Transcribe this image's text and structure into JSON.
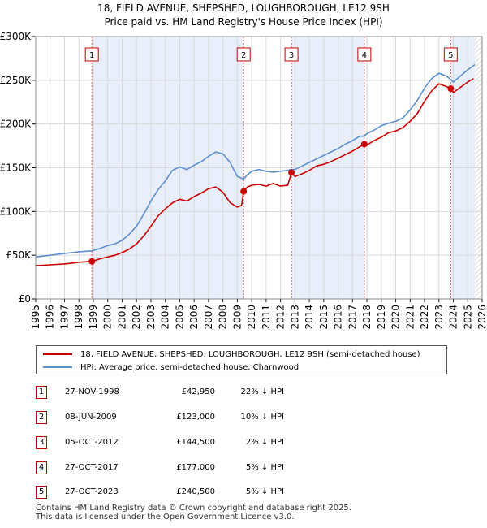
{
  "title": {
    "line1": "18, FIELD AVENUE, SHEPSHED, LOUGHBOROUGH, LE12 9SH",
    "line2": "Price paid vs. HM Land Registry's House Price Index (HPI)"
  },
  "chart_data": {
    "type": "line",
    "title": "18, FIELD AVENUE, SHEPSHED, LOUGHBOROUGH, LE12 9SH - Price paid vs. HM Land Registry's House Price Index (HPI)",
    "xlim": [
      1995,
      2026
    ],
    "ylim": [
      0,
      300000
    ],
    "y_ticks": [
      0,
      50000,
      100000,
      150000,
      200000,
      250000,
      300000
    ],
    "y_tick_labels": [
      "£0",
      "£50K",
      "£100K",
      "£150K",
      "£200K",
      "£250K",
      "£300K"
    ],
    "x_ticks": [
      1995,
      1996,
      1997,
      1998,
      1999,
      2000,
      2001,
      2002,
      2003,
      2004,
      2005,
      2006,
      2007,
      2008,
      2009,
      2010,
      2011,
      2012,
      2013,
      2014,
      2015,
      2016,
      2017,
      2018,
      2019,
      2020,
      2021,
      2022,
      2023,
      2024,
      2025,
      2026
    ],
    "x_tick_labels": [
      "1995",
      "1996",
      "1997",
      "1998",
      "1999",
      "2000",
      "2001",
      "2002",
      "2003",
      "2004",
      "2005",
      "2006",
      "2007",
      "2008",
      "2009",
      "2010",
      "2011",
      "2012",
      "2013",
      "2014",
      "2015",
      "2016",
      "2017",
      "2018",
      "2019",
      "2020",
      "2021",
      "2022",
      "2023",
      "2024",
      "2025",
      "2026"
    ],
    "grid": true,
    "shaded_ranges": [
      [
        1998.9,
        2009.44
      ],
      [
        2012.76,
        2017.82
      ],
      [
        2023.82,
        2025.5
      ]
    ],
    "hatched_range": [
      2025.5,
      2026
    ],
    "series": [
      {
        "name": "18, FIELD AVENUE, SHEPSHED, LOUGHBOROUGH, LE12 9SH (semi-detached house)",
        "color": "#cc0000",
        "x": [
          1995.0,
          1996.0,
          1997.0,
          1997.5,
          1998.0,
          1998.5,
          1998.9,
          1999.5,
          2000.0,
          2000.5,
          2001.0,
          2001.5,
          2002.0,
          2002.5,
          2003.0,
          2003.5,
          2004.0,
          2004.5,
          2005.0,
          2005.5,
          2006.0,
          2006.5,
          2007.0,
          2007.5,
          2008.0,
          2008.5,
          2009.0,
          2009.3,
          2009.44,
          2009.7,
          2010.0,
          2010.5,
          2011.0,
          2011.5,
          2012.0,
          2012.5,
          2012.76,
          2013.0,
          2013.5,
          2014.0,
          2014.5,
          2015.0,
          2015.5,
          2016.0,
          2016.5,
          2017.0,
          2017.5,
          2017.82,
          2018.0,
          2018.5,
          2019.0,
          2019.5,
          2020.0,
          2020.5,
          2021.0,
          2021.5,
          2022.0,
          2022.5,
          2023.0,
          2023.5,
          2023.82,
          2024.0,
          2024.5,
          2025.0,
          2025.4
        ],
        "y": [
          38000,
          39000,
          40000,
          41000,
          42000,
          42500,
          42950,
          46000,
          48000,
          50000,
          53000,
          57000,
          63000,
          72000,
          83000,
          95000,
          103000,
          110000,
          114000,
          112000,
          117000,
          121000,
          126000,
          128000,
          122000,
          110000,
          105000,
          107000,
          123000,
          128000,
          130000,
          131000,
          129000,
          132000,
          129000,
          130000,
          144500,
          140000,
          143000,
          147000,
          152000,
          154000,
          157000,
          161000,
          165000,
          169000,
          174000,
          177000,
          176000,
          181000,
          185000,
          190000,
          192000,
          196000,
          203000,
          212000,
          226000,
          238000,
          246000,
          243000,
          240500,
          236000,
          242000,
          248000,
          252000
        ]
      },
      {
        "name": "HPI: Average price, semi-detached house, Charnwood",
        "color": "#5b8fd0",
        "x": [
          1995.0,
          1996.0,
          1997.0,
          1998.0,
          1998.9,
          1999.5,
          2000.0,
          2000.5,
          2001.0,
          2001.5,
          2002.0,
          2002.5,
          2003.0,
          2003.5,
          2004.0,
          2004.5,
          2005.0,
          2005.5,
          2006.0,
          2006.5,
          2007.0,
          2007.5,
          2008.0,
          2008.5,
          2009.0,
          2009.44,
          2009.7,
          2010.0,
          2010.5,
          2011.0,
          2011.5,
          2012.0,
          2012.5,
          2012.76,
          2013.0,
          2013.5,
          2014.0,
          2014.5,
          2015.0,
          2015.5,
          2016.0,
          2016.5,
          2017.0,
          2017.5,
          2017.82,
          2018.0,
          2018.5,
          2019.0,
          2019.5,
          2020.0,
          2020.5,
          2021.0,
          2021.5,
          2022.0,
          2022.5,
          2023.0,
          2023.5,
          2023.82,
          2024.0,
          2024.5,
          2025.0,
          2025.5
        ],
        "y": [
          48000,
          50000,
          52000,
          54000,
          55000,
          58000,
          61000,
          63000,
          67000,
          74000,
          83000,
          97000,
          112000,
          125000,
          135000,
          147000,
          151000,
          148000,
          153000,
          157000,
          163000,
          168000,
          166000,
          156000,
          140000,
          137000,
          142000,
          146000,
          148000,
          146000,
          145000,
          146000,
          147000,
          148000,
          148000,
          152000,
          156000,
          160000,
          164000,
          168000,
          172000,
          177000,
          181000,
          186000,
          186000,
          189000,
          193000,
          198000,
          201000,
          203000,
          207000,
          216000,
          227000,
          241000,
          252000,
          258000,
          255000,
          251000,
          248000,
          255000,
          262000,
          268000
        ]
      }
    ],
    "sales": [
      {
        "label": "1",
        "x": 1998.9,
        "y": 42950
      },
      {
        "label": "2",
        "x": 2009.44,
        "y": 123000
      },
      {
        "label": "3",
        "x": 2012.76,
        "y": 144500
      },
      {
        "label": "4",
        "x": 2017.82,
        "y": 177000
      },
      {
        "label": "5",
        "x": 2023.82,
        "y": 240500
      }
    ],
    "colors": {
      "property": "#cc0000",
      "hpi": "#5b8fd0",
      "shade": "#e8eefa",
      "grid": "#d9d9d9"
    }
  },
  "legend": {
    "property_label": "18, FIELD AVENUE, SHEPSHED, LOUGHBOROUGH, LE12 9SH (semi-detached house)",
    "hpi_label": "HPI: Average price, semi-detached house, Charnwood"
  },
  "sales_table": [
    {
      "num": "1",
      "date": "27-NOV-1998",
      "price": "£42,950",
      "hpi": "22% ↓ HPI"
    },
    {
      "num": "2",
      "date": "08-JUN-2009",
      "price": "£123,000",
      "hpi": "10% ↓ HPI"
    },
    {
      "num": "3",
      "date": "05-OCT-2012",
      "price": "£144,500",
      "hpi": "2% ↓ HPI"
    },
    {
      "num": "4",
      "date": "27-OCT-2017",
      "price": "£177,000",
      "hpi": "5% ↓ HPI"
    },
    {
      "num": "5",
      "date": "27-OCT-2023",
      "price": "£240,500",
      "hpi": "5% ↓ HPI"
    }
  ],
  "footer": {
    "line1": "Contains HM Land Registry data © Crown copyright and database right 2025.",
    "line2": "This data is licensed under the Open Government Licence v3.0."
  }
}
